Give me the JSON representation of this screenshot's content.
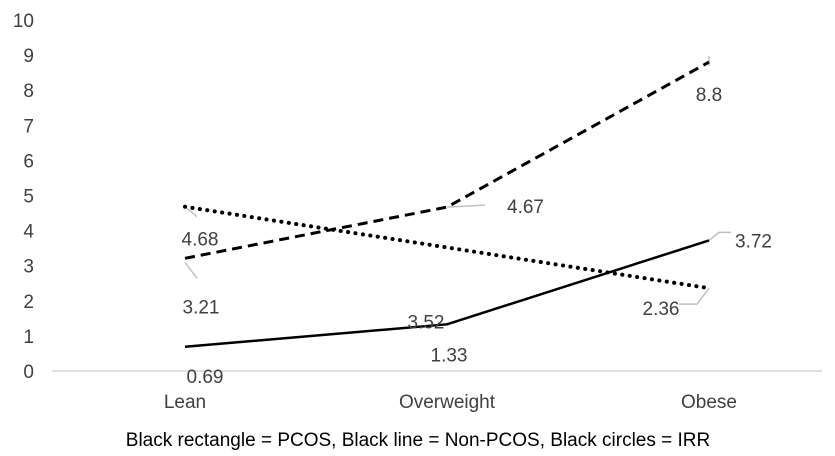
{
  "chart_data": {
    "type": "line",
    "categories": [
      "Lean",
      "Overweight",
      "Obese"
    ],
    "ylim": [
      0,
      10
    ],
    "yticks": [
      "0",
      "1",
      "2",
      "3",
      "4",
      "5",
      "6",
      "7",
      "8",
      "9",
      "10"
    ],
    "series": [
      {
        "key": "pcos",
        "style": "dashed",
        "color": "#000000",
        "values": [
          3.21,
          4.67,
          8.8
        ],
        "labels": [
          "3.21",
          "4.67",
          "8.8"
        ]
      },
      {
        "key": "non_pcos",
        "style": "solid",
        "color": "#000000",
        "values": [
          0.69,
          1.33,
          3.72
        ],
        "labels": [
          "0.69",
          "1.33",
          "3.72"
        ]
      },
      {
        "key": "irr",
        "style": "dotted",
        "color": "#000000",
        "values": [
          4.68,
          3.52,
          2.36
        ],
        "labels": [
          "4.68",
          "3.52",
          "2.36"
        ]
      }
    ],
    "caption": "Black rectangle = PCOS, Black line = Non-PCOS, Black circles  = IRR",
    "grid": false
  }
}
